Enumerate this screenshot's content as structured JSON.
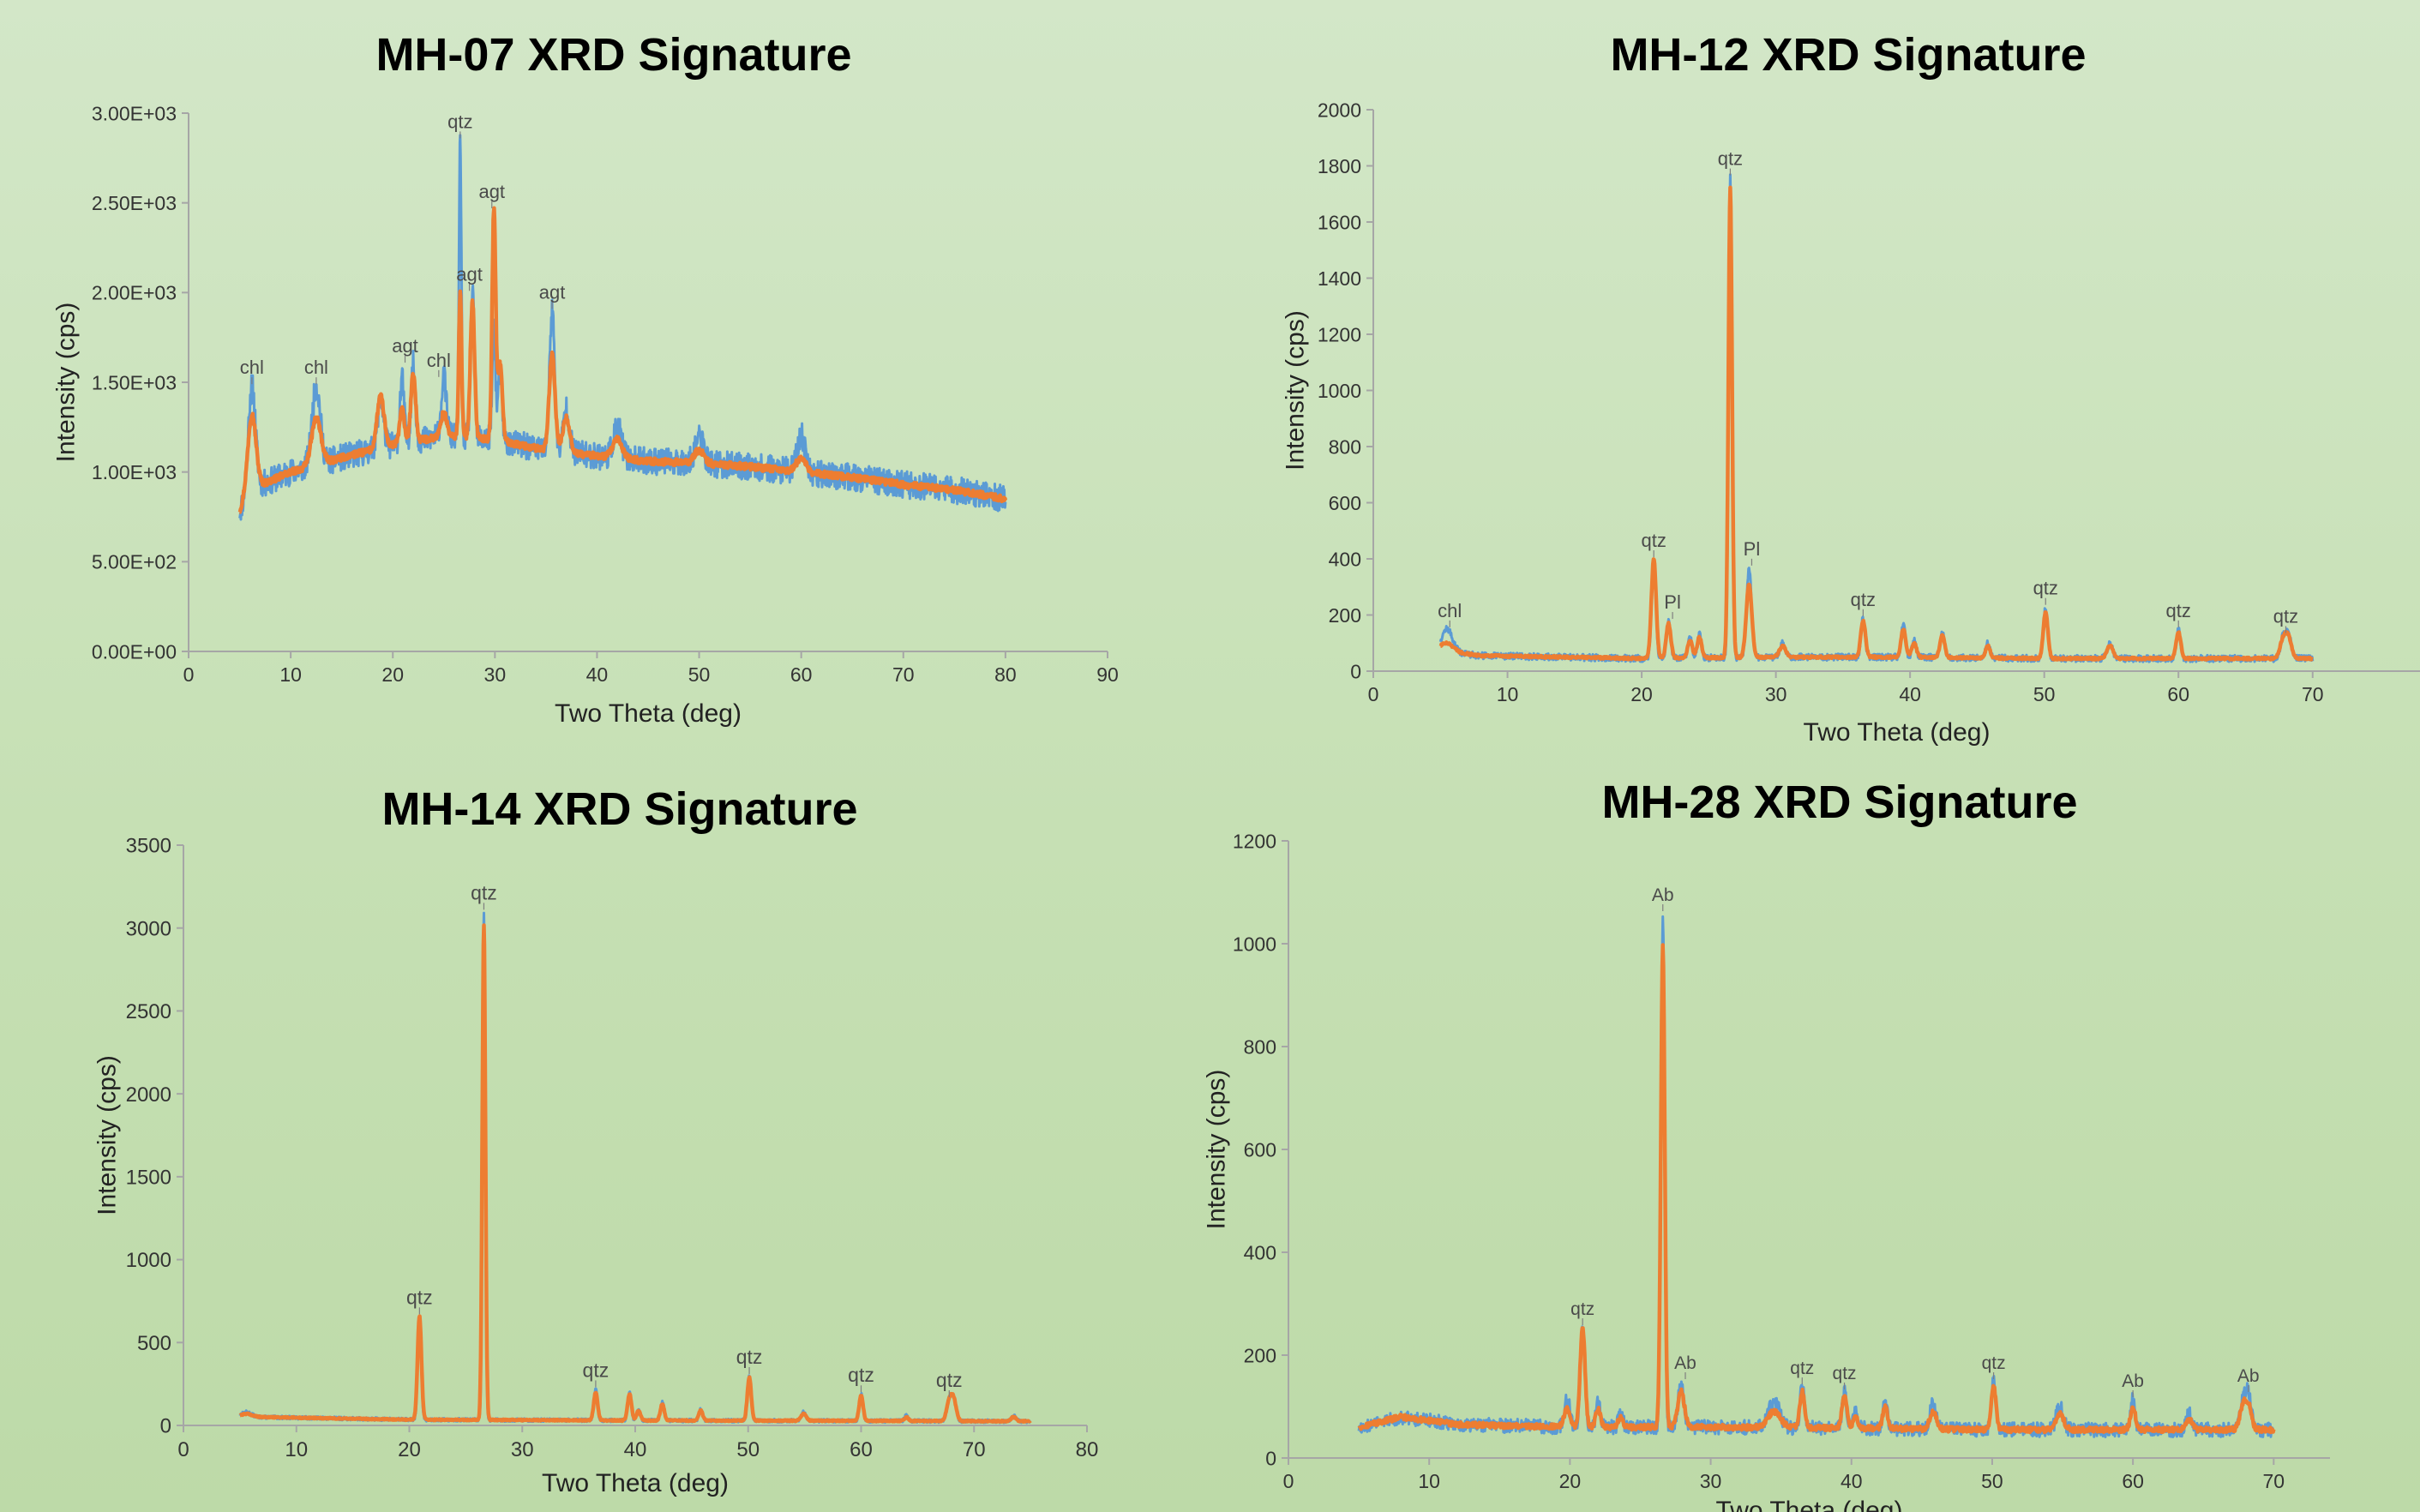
{
  "colors": {
    "raw": "#5b9bd5",
    "smoothed": "#ed7d31",
    "axis": "#a6a6a6",
    "text": "#333333"
  },
  "chart_data": [
    {
      "type": "line",
      "title": "MH-07 XRD Signature",
      "xlabel": "Two Theta (deg)",
      "ylabel": "Intensity (cps)",
      "xlim": [
        0,
        90
      ],
      "ylim": [
        0,
        3000
      ],
      "xticks": [
        0,
        10,
        20,
        30,
        40,
        50,
        60,
        70,
        80,
        90
      ],
      "xtick_labels": [
        "0",
        "10",
        "20",
        "30",
        "40",
        "50",
        "60",
        "70",
        "80",
        "90"
      ],
      "yticks": [
        0,
        500,
        1000,
        1500,
        2000,
        2500,
        3000
      ],
      "ytick_labels": [
        "0.00E+00",
        "5.00E+02",
        "1.00E+03",
        "1.50E+03",
        "2.00E+03",
        "2.50E+03",
        "3.00E+03"
      ],
      "grid": false,
      "x_range": [
        5,
        80
      ],
      "background": [
        [
          5,
          780
        ],
        [
          6,
          900
        ],
        [
          10,
          1000
        ],
        [
          15,
          1080
        ],
        [
          20,
          1150
        ],
        [
          25,
          1200
        ],
        [
          30,
          1180
        ],
        [
          35,
          1120
        ],
        [
          40,
          1090
        ],
        [
          45,
          1060
        ],
        [
          50,
          1050
        ],
        [
          55,
          1030
        ],
        [
          60,
          1000
        ],
        [
          65,
          970
        ],
        [
          70,
          930
        ],
        [
          75,
          900
        ],
        [
          80,
          850
        ]
      ],
      "noise_raw": 75,
      "noise_smooth": 18,
      "peaks": [
        {
          "x": 6.2,
          "raw": 1480,
          "smooth": 1320,
          "w": 0.35
        },
        {
          "x": 12.5,
          "raw": 1480,
          "smooth": 1300,
          "w": 0.4
        },
        {
          "x": 18.8,
          "raw": 1400,
          "smooth": 1420,
          "w": 0.3
        },
        {
          "x": 20.9,
          "raw": 1520,
          "smooth": 1350,
          "w": 0.2
        },
        {
          "x": 22.0,
          "raw": 1600,
          "smooth": 1550,
          "w": 0.2
        },
        {
          "x": 25.0,
          "raw": 1520,
          "smooth": 1330,
          "w": 0.25
        },
        {
          "x": 26.6,
          "raw": 2850,
          "smooth": 2000,
          "w": 0.12
        },
        {
          "x": 27.8,
          "raw": 2000,
          "smooth": 1950,
          "w": 0.18
        },
        {
          "x": 29.9,
          "raw": 1800,
          "smooth": 2460,
          "w": 0.15
        },
        {
          "x": 30.5,
          "raw": 1550,
          "smooth": 1600,
          "w": 0.2
        },
        {
          "x": 35.6,
          "raw": 1900,
          "smooth": 1650,
          "w": 0.25
        },
        {
          "x": 37.0,
          "raw": 1350,
          "smooth": 1300,
          "w": 0.3
        },
        {
          "x": 42.0,
          "raw": 1250,
          "smooth": 1180,
          "w": 0.4
        },
        {
          "x": 50.0,
          "raw": 1200,
          "smooth": 1120,
          "w": 0.4
        },
        {
          "x": 60.0,
          "raw": 1200,
          "smooth": 1080,
          "w": 0.4
        }
      ],
      "labels": [
        {
          "text": "chl",
          "x": 6.2,
          "y": 1480
        },
        {
          "text": "chl",
          "x": 12.5,
          "y": 1480
        },
        {
          "text": "agt",
          "x": 21.2,
          "y": 1600
        },
        {
          "text": "chl",
          "x": 24.5,
          "y": 1520
        },
        {
          "text": "qtz",
          "x": 26.6,
          "y": 2850
        },
        {
          "text": "agt",
          "x": 29.7,
          "y": 2460
        },
        {
          "text": "agt",
          "x": 27.5,
          "y": 2000
        },
        {
          "text": "agt",
          "x": 35.6,
          "y": 1900
        }
      ]
    },
    {
      "type": "line",
      "title": "MH-12 XRD Signature",
      "xlabel": "Two Theta (deg)",
      "ylabel": "Intensity (cps)",
      "xlim": [
        0,
        78
      ],
      "ylim": [
        0,
        2000
      ],
      "xticks": [
        0,
        10,
        20,
        30,
        40,
        50,
        60,
        70
      ],
      "xtick_labels": [
        "0",
        "10",
        "20",
        "30",
        "40",
        "50",
        "60",
        "70"
      ],
      "yticks": [
        0,
        200,
        400,
        600,
        800,
        1000,
        1200,
        1400,
        1600,
        1800,
        2000
      ],
      "ytick_labels": [
        "0",
        "200",
        "400",
        "600",
        "800",
        "1000",
        "1200",
        "1400",
        "1600",
        "1800",
        "2000"
      ],
      "grid": false,
      "x_range": [
        5,
        70
      ],
      "background": [
        [
          5,
          75
        ],
        [
          8,
          55
        ],
        [
          20,
          45
        ],
        [
          30,
          50
        ],
        [
          40,
          50
        ],
        [
          50,
          45
        ],
        [
          60,
          45
        ],
        [
          70,
          45
        ]
      ],
      "noise_raw": 12,
      "noise_smooth": 4,
      "peaks": [
        {
          "x": 5.5,
          "raw": 150,
          "smooth": 100,
          "w": 0.4
        },
        {
          "x": 20.9,
          "raw": 390,
          "smooth": 400,
          "w": 0.15
        },
        {
          "x": 22.0,
          "raw": 180,
          "smooth": 170,
          "w": 0.15
        },
        {
          "x": 23.6,
          "raw": 120,
          "smooth": 110,
          "w": 0.15
        },
        {
          "x": 24.3,
          "raw": 130,
          "smooth": 120,
          "w": 0.15
        },
        {
          "x": 26.6,
          "raw": 1760,
          "smooth": 1720,
          "w": 0.12
        },
        {
          "x": 28.0,
          "raw": 370,
          "smooth": 310,
          "w": 0.18
        },
        {
          "x": 30.5,
          "raw": 100,
          "smooth": 90,
          "w": 0.2
        },
        {
          "x": 36.5,
          "raw": 190,
          "smooth": 180,
          "w": 0.15
        },
        {
          "x": 39.5,
          "raw": 170,
          "smooth": 150,
          "w": 0.15
        },
        {
          "x": 40.3,
          "raw": 110,
          "smooth": 100,
          "w": 0.15
        },
        {
          "x": 42.4,
          "raw": 140,
          "smooth": 130,
          "w": 0.15
        },
        {
          "x": 45.8,
          "raw": 100,
          "smooth": 90,
          "w": 0.15
        },
        {
          "x": 50.1,
          "raw": 230,
          "smooth": 210,
          "w": 0.15
        },
        {
          "x": 54.9,
          "raw": 100,
          "smooth": 90,
          "w": 0.2
        },
        {
          "x": 60.0,
          "raw": 150,
          "smooth": 140,
          "w": 0.15
        },
        {
          "x": 67.8,
          "raw": 120,
          "smooth": 110,
          "w": 0.2
        },
        {
          "x": 68.2,
          "raw": 130,
          "smooth": 115,
          "w": 0.2
        }
      ],
      "labels": [
        {
          "text": "chl",
          "x": 5.7,
          "y": 150
        },
        {
          "text": "qtz",
          "x": 20.9,
          "y": 400
        },
        {
          "text": "Pl",
          "x": 22.3,
          "y": 180
        },
        {
          "text": "qtz",
          "x": 26.6,
          "y": 1760
        },
        {
          "text": "Pl",
          "x": 28.2,
          "y": 370
        },
        {
          "text": "qtz",
          "x": 36.5,
          "y": 190
        },
        {
          "text": "qtz",
          "x": 50.1,
          "y": 230
        },
        {
          "text": "qtz",
          "x": 60.0,
          "y": 150
        },
        {
          "text": "qtz",
          "x": 68.0,
          "y": 130
        }
      ]
    },
    {
      "type": "line",
      "title": "MH-14 XRD Signature",
      "xlabel": "Two Theta (deg)",
      "ylabel": "Intensity (cps)",
      "xlim": [
        0,
        80
      ],
      "ylim": [
        0,
        3500
      ],
      "xticks": [
        0,
        10,
        20,
        30,
        40,
        50,
        60,
        70,
        80
      ],
      "xtick_labels": [
        "0",
        "10",
        "20",
        "30",
        "40",
        "50",
        "60",
        "70",
        "80"
      ],
      "yticks": [
        0,
        500,
        1000,
        1500,
        2000,
        2500,
        3000,
        3500
      ],
      "ytick_labels": [
        "0",
        "500",
        "1000",
        "1500",
        "2000",
        "2500",
        "3000",
        "3500"
      ],
      "grid": false,
      "x_range": [
        5,
        75
      ],
      "background": [
        [
          5,
          55
        ],
        [
          7,
          50
        ],
        [
          20,
          35
        ],
        [
          40,
          30
        ],
        [
          60,
          28
        ],
        [
          75,
          25
        ]
      ],
      "noise_raw": 10,
      "noise_smooth": 4,
      "peaks": [
        {
          "x": 5.6,
          "raw": 80,
          "smooth": 70,
          "w": 0.4
        },
        {
          "x": 20.9,
          "raw": 640,
          "smooth": 660,
          "w": 0.15
        },
        {
          "x": 26.6,
          "raw": 3100,
          "smooth": 3020,
          "w": 0.12
        },
        {
          "x": 36.5,
          "raw": 220,
          "smooth": 200,
          "w": 0.15
        },
        {
          "x": 39.5,
          "raw": 200,
          "smooth": 190,
          "w": 0.15
        },
        {
          "x": 40.3,
          "raw": 100,
          "smooth": 90,
          "w": 0.15
        },
        {
          "x": 42.4,
          "raw": 140,
          "smooth": 130,
          "w": 0.15
        },
        {
          "x": 45.8,
          "raw": 100,
          "smooth": 90,
          "w": 0.15
        },
        {
          "x": 50.1,
          "raw": 300,
          "smooth": 290,
          "w": 0.15
        },
        {
          "x": 54.9,
          "raw": 80,
          "smooth": 70,
          "w": 0.2
        },
        {
          "x": 60.0,
          "raw": 190,
          "smooth": 180,
          "w": 0.15
        },
        {
          "x": 64.0,
          "raw": 60,
          "smooth": 50,
          "w": 0.15
        },
        {
          "x": 67.8,
          "raw": 150,
          "smooth": 140,
          "w": 0.2
        },
        {
          "x": 68.2,
          "raw": 160,
          "smooth": 150,
          "w": 0.2
        },
        {
          "x": 73.5,
          "raw": 60,
          "smooth": 50,
          "w": 0.2
        }
      ],
      "labels": [
        {
          "text": "qtz",
          "x": 20.9,
          "y": 660
        },
        {
          "text": "qtz",
          "x": 26.6,
          "y": 3100
        },
        {
          "text": "qtz",
          "x": 36.5,
          "y": 220
        },
        {
          "text": "qtz",
          "x": 50.1,
          "y": 300
        },
        {
          "text": "qtz",
          "x": 60.0,
          "y": 190
        },
        {
          "text": "qtz",
          "x": 67.8,
          "y": 160
        }
      ]
    },
    {
      "type": "line",
      "title": "MH-28 XRD Signature",
      "xlabel": "Two Theta (deg)",
      "ylabel": "Intensity  (cps)",
      "xlim": [
        0,
        74
      ],
      "ylim": [
        0,
        1200
      ],
      "xticks": [
        0,
        10,
        20,
        30,
        40,
        50,
        60,
        70
      ],
      "xtick_labels": [
        "0",
        "10",
        "20",
        "30",
        "40",
        "50",
        "60",
        "70"
      ],
      "yticks": [
        0,
        200,
        400,
        600,
        800,
        1000,
        1200
      ],
      "ytick_labels": [
        "0",
        "200",
        "400",
        "600",
        "800",
        "1000",
        "1200"
      ],
      "grid": false,
      "x_range": [
        5,
        70
      ],
      "background": [
        [
          5,
          60
        ],
        [
          8,
          80
        ],
        [
          12,
          65
        ],
        [
          20,
          60
        ],
        [
          30,
          60
        ],
        [
          40,
          58
        ],
        [
          50,
          55
        ],
        [
          60,
          55
        ],
        [
          70,
          55
        ]
      ],
      "noise_raw": 14,
      "noise_smooth": 5,
      "peaks": [
        {
          "x": 19.8,
          "raw": 115,
          "smooth": 95,
          "w": 0.2
        },
        {
          "x": 20.9,
          "raw": 250,
          "smooth": 255,
          "w": 0.15
        },
        {
          "x": 22.0,
          "raw": 110,
          "smooth": 95,
          "w": 0.15
        },
        {
          "x": 23.6,
          "raw": 90,
          "smooth": 80,
          "w": 0.15
        },
        {
          "x": 26.6,
          "raw": 1060,
          "smooth": 1000,
          "w": 0.12
        },
        {
          "x": 27.9,
          "raw": 150,
          "smooth": 130,
          "w": 0.2
        },
        {
          "x": 34.5,
          "raw": 110,
          "smooth": 90,
          "w": 0.4
        },
        {
          "x": 36.5,
          "raw": 140,
          "smooth": 130,
          "w": 0.15
        },
        {
          "x": 39.5,
          "raw": 130,
          "smooth": 120,
          "w": 0.15
        },
        {
          "x": 40.3,
          "raw": 90,
          "smooth": 80,
          "w": 0.15
        },
        {
          "x": 42.4,
          "raw": 110,
          "smooth": 100,
          "w": 0.15
        },
        {
          "x": 45.8,
          "raw": 110,
          "smooth": 90,
          "w": 0.2
        },
        {
          "x": 50.1,
          "raw": 150,
          "smooth": 140,
          "w": 0.15
        },
        {
          "x": 54.8,
          "raw": 100,
          "smooth": 85,
          "w": 0.25
        },
        {
          "x": 60.0,
          "raw": 115,
          "smooth": 100,
          "w": 0.15
        },
        {
          "x": 64.0,
          "raw": 85,
          "smooth": 75,
          "w": 0.2
        },
        {
          "x": 67.8,
          "raw": 110,
          "smooth": 95,
          "w": 0.2
        },
        {
          "x": 68.2,
          "raw": 125,
          "smooth": 100,
          "w": 0.2
        }
      ],
      "labels": [
        {
          "text": "qtz",
          "x": 20.9,
          "y": 255
        },
        {
          "text": "Ab",
          "x": 26.6,
          "y": 1060
        },
        {
          "text": "Ab",
          "x": 28.2,
          "y": 150
        },
        {
          "text": "qtz",
          "x": 36.5,
          "y": 140
        },
        {
          "text": "qtz",
          "x": 39.5,
          "y": 130
        },
        {
          "text": "qtz",
          "x": 50.1,
          "y": 150
        },
        {
          "text": "Ab",
          "x": 60.0,
          "y": 115
        },
        {
          "text": "Ab",
          "x": 68.2,
          "y": 125
        }
      ]
    }
  ]
}
